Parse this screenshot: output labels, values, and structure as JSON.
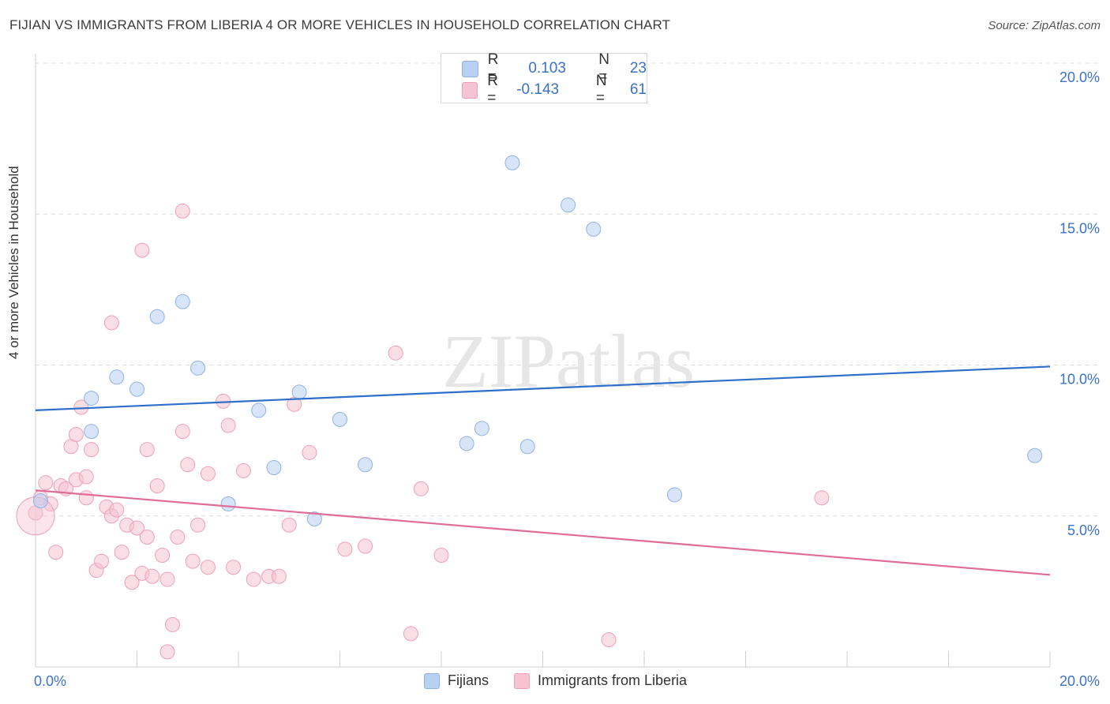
{
  "title": "FIJIAN VS IMMIGRANTS FROM LIBERIA 4 OR MORE VEHICLES IN HOUSEHOLD CORRELATION CHART",
  "source": "Source: ZipAtlas.com",
  "watermark": "ZIPatlas",
  "legend": {
    "rows": [
      {
        "r_label": "R =",
        "r_value": "0.103",
        "n_label": "N =",
        "n_value": "23"
      },
      {
        "r_label": "R =",
        "r_value": "-0.143",
        "n_label": "N =",
        "n_value": "61"
      }
    ]
  },
  "bottom_legend": [
    "Fijians",
    "Immigrants from Liberia"
  ],
  "colors": {
    "fijians_fill": "#b8d0f2",
    "fijians_stroke": "#8fb2e6",
    "fijians_line": "#2e6fca",
    "liberia_fill": "#f6c3d2",
    "liberia_stroke": "#eda0b8",
    "liberia_line": "#e06c97",
    "tick_label": "#3a72c8",
    "grid": "#dcdcdc"
  },
  "chart_data": {
    "type": "scatter",
    "xlabel": "",
    "ylabel": "4 or more Vehicles in Household",
    "xlim": [
      0,
      20
    ],
    "ylim": [
      0,
      20
    ],
    "x_tick_labels": [
      "0.0%",
      "20.0%"
    ],
    "y_ticks": [
      5,
      10,
      15,
      20
    ],
    "y_tick_labels": [
      "5.0%",
      "10.0%",
      "15.0%",
      "20.0%"
    ],
    "grid": true,
    "legend_position": "top-center",
    "series": [
      {
        "name": "Fijians",
        "trend": {
          "x": [
            0,
            20
          ],
          "y": [
            8.5,
            9.95
          ]
        },
        "points": [
          [
            0.1,
            5.5
          ],
          [
            1.1,
            7.8
          ],
          [
            1.1,
            8.9
          ],
          [
            1.6,
            9.6
          ],
          [
            2.0,
            9.2
          ],
          [
            2.4,
            11.6
          ],
          [
            2.9,
            12.1
          ],
          [
            3.2,
            9.9
          ],
          [
            3.8,
            5.4
          ],
          [
            4.4,
            8.5
          ],
          [
            4.7,
            6.6
          ],
          [
            5.2,
            9.1
          ],
          [
            5.5,
            4.9
          ],
          [
            6.0,
            8.2
          ],
          [
            6.5,
            6.7
          ],
          [
            8.5,
            7.4
          ],
          [
            8.8,
            7.9
          ],
          [
            9.4,
            16.7
          ],
          [
            9.7,
            7.3
          ],
          [
            10.5,
            15.3
          ],
          [
            11.0,
            14.5
          ],
          [
            12.6,
            5.7
          ],
          [
            19.7,
            7.0
          ]
        ]
      },
      {
        "name": "Immigrants from Liberia",
        "trend": {
          "x": [
            0,
            20
          ],
          "y": [
            5.85,
            3.05
          ]
        },
        "points": [
          [
            0.0,
            5.1
          ],
          [
            0.1,
            5.6
          ],
          [
            0.2,
            6.1
          ],
          [
            0.3,
            5.4
          ],
          [
            0.4,
            3.8
          ],
          [
            0.5,
            6.0
          ],
          [
            0.6,
            5.9
          ],
          [
            0.7,
            7.3
          ],
          [
            0.8,
            7.7
          ],
          [
            0.8,
            6.2
          ],
          [
            0.9,
            8.6
          ],
          [
            1.0,
            5.6
          ],
          [
            1.0,
            6.3
          ],
          [
            1.1,
            7.2
          ],
          [
            1.2,
            3.2
          ],
          [
            1.3,
            3.5
          ],
          [
            1.4,
            5.3
          ],
          [
            1.5,
            5.0
          ],
          [
            1.5,
            11.4
          ],
          [
            1.6,
            5.2
          ],
          [
            1.7,
            3.8
          ],
          [
            1.8,
            4.7
          ],
          [
            1.9,
            2.8
          ],
          [
            2.0,
            4.6
          ],
          [
            2.1,
            3.1
          ],
          [
            2.1,
            13.8
          ],
          [
            2.2,
            7.2
          ],
          [
            2.2,
            4.3
          ],
          [
            2.3,
            3.0
          ],
          [
            2.4,
            6.0
          ],
          [
            2.5,
            3.7
          ],
          [
            2.6,
            0.5
          ],
          [
            2.6,
            2.9
          ],
          [
            2.7,
            1.4
          ],
          [
            2.8,
            4.3
          ],
          [
            2.9,
            15.1
          ],
          [
            2.9,
            7.8
          ],
          [
            3.0,
            6.7
          ],
          [
            3.1,
            3.5
          ],
          [
            3.2,
            4.7
          ],
          [
            3.4,
            6.4
          ],
          [
            3.4,
            3.3
          ],
          [
            3.7,
            8.8
          ],
          [
            3.8,
            8.0
          ],
          [
            3.9,
            3.3
          ],
          [
            4.1,
            6.5
          ],
          [
            4.3,
            2.9
          ],
          [
            4.6,
            3.0
          ],
          [
            4.8,
            3.0
          ],
          [
            5.0,
            4.7
          ],
          [
            5.1,
            8.7
          ],
          [
            5.4,
            7.1
          ],
          [
            6.1,
            3.9
          ],
          [
            6.5,
            4.0
          ],
          [
            7.1,
            10.4
          ],
          [
            7.4,
            1.1
          ],
          [
            7.6,
            5.9
          ],
          [
            8.0,
            3.7
          ],
          [
            11.3,
            0.9
          ],
          [
            15.5,
            5.6
          ],
          [
            0.0,
            5.0
          ]
        ]
      }
    ]
  }
}
